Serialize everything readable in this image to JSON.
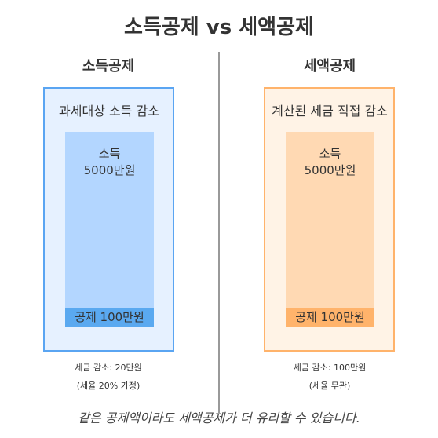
{
  "title": "소득공제 vs 세액공제",
  "left": {
    "heading": "소득공제",
    "caption": "과세대상 소득 감소",
    "bar_line1": "소득",
    "bar_line2": "5000만원",
    "deduction_label": "공제 100만원",
    "result_line1": "세금 감소: 20만원",
    "result_line2": "(세율 20% 가정)",
    "colors": {
      "border": "#5aa5f2",
      "fill": "#e6f1ff",
      "bar": "#b3d6ff",
      "deduction": "#5aa9f0"
    }
  },
  "right": {
    "heading": "세액공제",
    "caption": "계산된 세금 직접 감소",
    "bar_line1": "소득",
    "bar_line2": "5000만원",
    "deduction_label": "공제 100만원",
    "result_line1": "세금 감소: 100만원",
    "result_line2": "(세율 무관)",
    "colors": {
      "border": "#ffb36b",
      "fill": "#fff3e6",
      "bar": "#ffd9b3",
      "deduction": "#ffb36b"
    }
  },
  "footer": "같은 공제액이라도 세액공제가 더 유리할 수 있습니다."
}
